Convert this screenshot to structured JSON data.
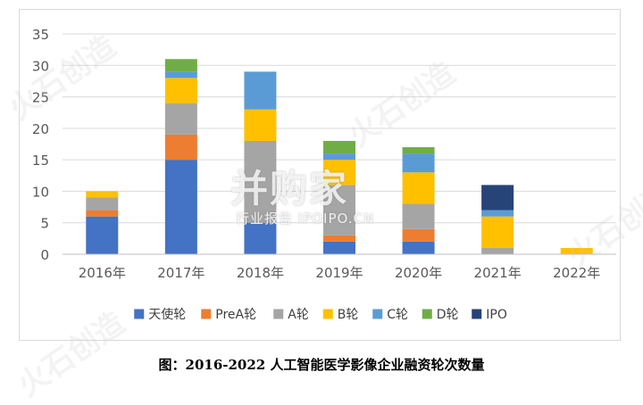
{
  "caption": "图：2016-2022 人工智能医学影像企业融资轮次数量",
  "watermark": {
    "main": "并购家",
    "sub": "行业报告 IPOIPO.CN",
    "brand": "火石创造"
  },
  "chart_data": {
    "type": "bar",
    "stacked": true,
    "title": "",
    "xlabel": "",
    "ylabel": "",
    "ylim": [
      0,
      35
    ],
    "yticks": [
      0,
      5,
      10,
      15,
      20,
      25,
      30,
      35
    ],
    "grid": true,
    "legend_position": "bottom",
    "categories": [
      "2016年",
      "2017年",
      "2018年",
      "2019年",
      "2020年",
      "2021年",
      "2022年"
    ],
    "series": [
      {
        "name": "天使轮",
        "color": "#4472C4",
        "values": [
          6,
          15,
          5,
          2,
          2,
          0,
          0
        ]
      },
      {
        "name": "PreA轮",
        "color": "#ED7D31",
        "values": [
          1,
          4,
          0,
          1,
          2,
          0,
          0
        ]
      },
      {
        "name": "A轮",
        "color": "#A5A5A5",
        "values": [
          2,
          5,
          13,
          8,
          4,
          1,
          0
        ]
      },
      {
        "name": "B轮",
        "color": "#FFC000",
        "values": [
          1,
          4,
          5,
          4,
          5,
          5,
          1
        ]
      },
      {
        "name": "C轮",
        "color": "#5B9BD5",
        "values": [
          0,
          1,
          6,
          1,
          3,
          1,
          0
        ]
      },
      {
        "name": "D轮",
        "color": "#70AD47",
        "values": [
          0,
          2,
          0,
          2,
          1,
          0,
          0
        ]
      },
      {
        "name": "IPO",
        "color": "#264478",
        "values": [
          0,
          0,
          0,
          0,
          0,
          4,
          0
        ]
      }
    ]
  }
}
